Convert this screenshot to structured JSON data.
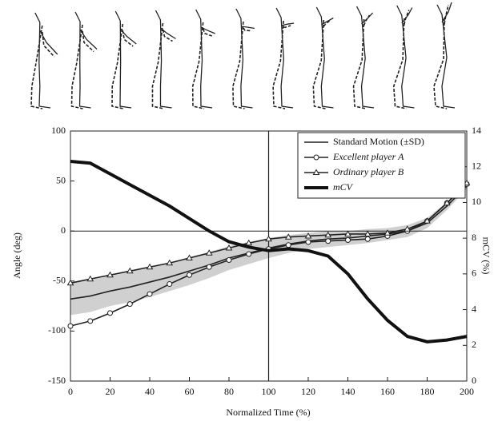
{
  "chart_data": {
    "type": "line",
    "xlabel": "Normalized Time (%)",
    "ylabel": "Angle (deg)",
    "y2label": "mCV (%)",
    "x": [
      0,
      10,
      20,
      30,
      40,
      50,
      60,
      70,
      80,
      90,
      100,
      110,
      120,
      130,
      140,
      150,
      160,
      170,
      180,
      190,
      200
    ],
    "xlim": [
      0,
      200
    ],
    "xticks": [
      0,
      20,
      40,
      60,
      80,
      100,
      120,
      140,
      160,
      180,
      200
    ],
    "ylim": [
      -150,
      100
    ],
    "yticks": [
      -150,
      -100,
      -50,
      0,
      50,
      100
    ],
    "y2lim": [
      0,
      14
    ],
    "y2ticks": [
      0,
      2,
      4,
      6,
      8,
      10,
      12,
      14
    ],
    "legend": "upper right",
    "series": [
      {
        "name": "Standard Motion (±SD)",
        "color": "#222222",
        "marker": "none",
        "band_color": "#c4c4c4",
        "values": [
          -68,
          -65,
          -60,
          -56,
          -51,
          -46,
          -40,
          -34,
          -27,
          -22,
          -17,
          -13,
          -10,
          -8,
          -7,
          -5,
          -3,
          0,
          8,
          25,
          45
        ],
        "sd": [
          16,
          16,
          15,
          15,
          15,
          14,
          14,
          13,
          12,
          11,
          10,
          9,
          8,
          8,
          7,
          7,
          6,
          6,
          5,
          4,
          3
        ]
      },
      {
        "name": "Excellent player A",
        "color": "#222222",
        "marker": "circle",
        "values": [
          -95,
          -90,
          -82,
          -73,
          -63,
          -53,
          -44,
          -36,
          -29,
          -23,
          -18,
          -14,
          -11,
          -10,
          -9,
          -8,
          -5,
          0,
          10,
          28,
          47
        ]
      },
      {
        "name": "Ordinary player B",
        "color": "#222222",
        "marker": "triangle",
        "values": [
          -52,
          -48,
          -44,
          -40,
          -36,
          -32,
          -27,
          -22,
          -17,
          -12,
          -8,
          -6,
          -5,
          -4,
          -3,
          -3,
          -2,
          2,
          10,
          28,
          48
        ]
      },
      {
        "name": "mCV",
        "color": "#111111",
        "marker": "none",
        "axis": "y2",
        "width": 4,
        "values": [
          12.3,
          12.2,
          11.6,
          11.0,
          10.4,
          9.8,
          9.1,
          8.4,
          7.8,
          7.5,
          7.3,
          7.4,
          7.3,
          7.0,
          6.0,
          4.6,
          3.4,
          2.5,
          2.2,
          2.3,
          2.5
        ]
      }
    ]
  }
}
